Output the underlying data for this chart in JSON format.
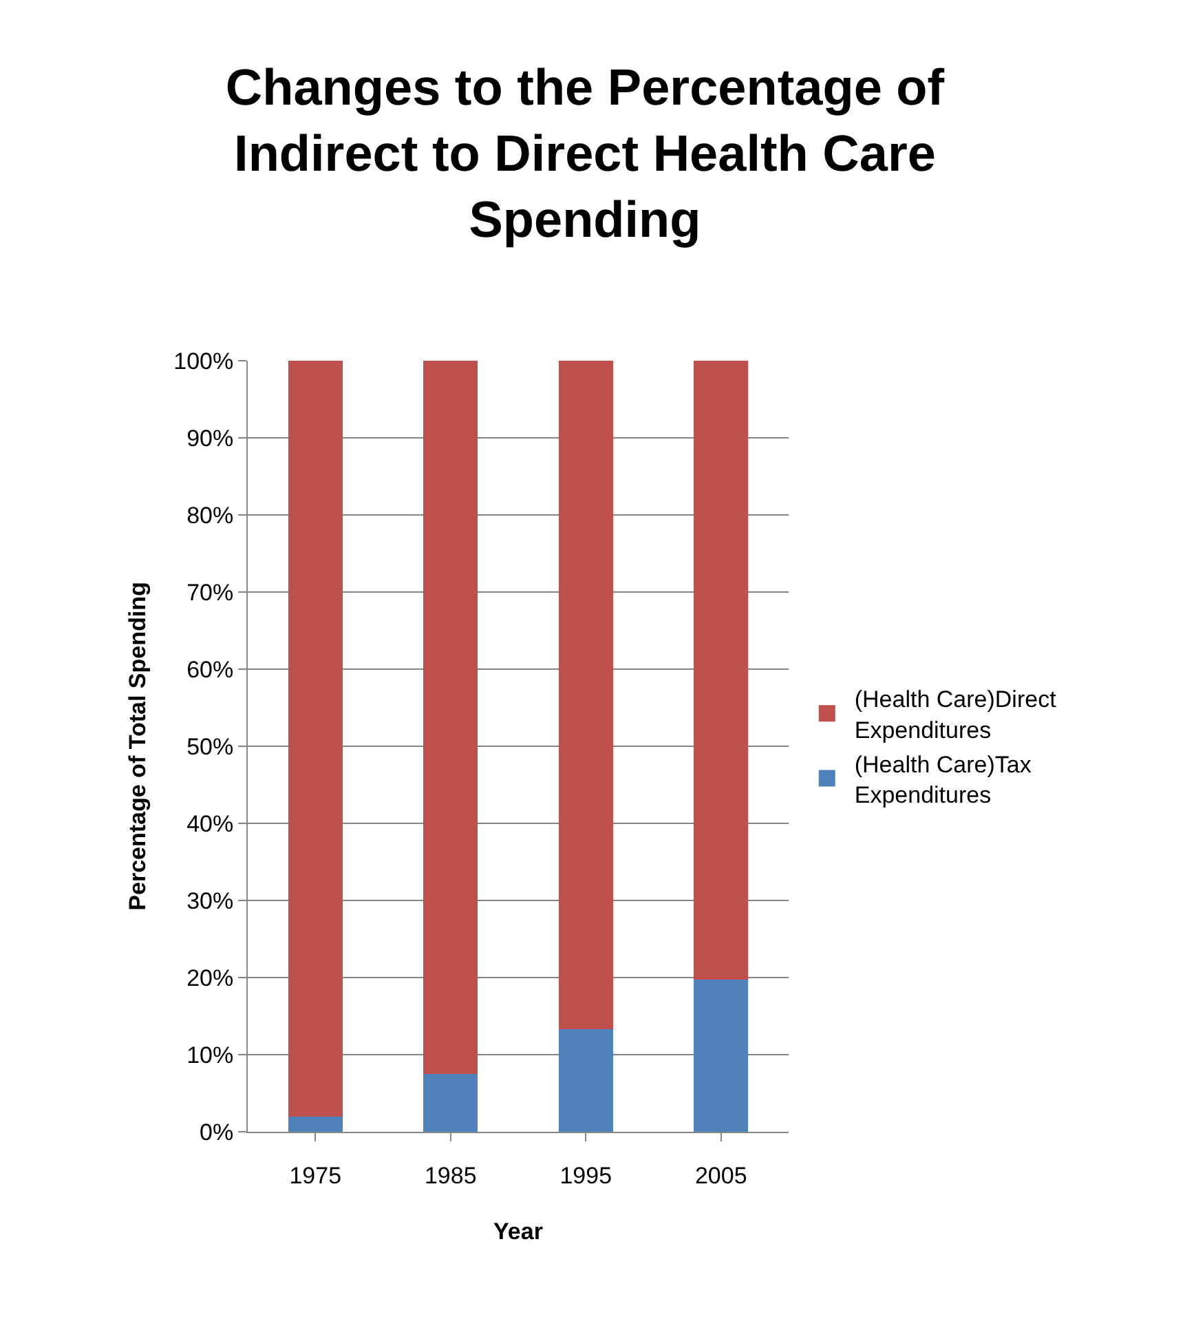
{
  "chart_data": {
    "type": "bar",
    "stacked": true,
    "title": "Changes to the Percentage of Indirect to Direct Health Care Spending",
    "xlabel": "Year",
    "ylabel": "Percentage of Total Spending",
    "categories": [
      "1975",
      "1985",
      "1995",
      "2005"
    ],
    "series": [
      {
        "name": "(Health Care)Tax Expenditures",
        "color": "#4f81bd",
        "values": [
          2,
          7.5,
          13.3,
          19.7
        ]
      },
      {
        "name": "(Health Care)Direct Expenditures",
        "color": "#c0504d",
        "values": [
          98,
          92.5,
          86.7,
          80.3
        ]
      }
    ],
    "ylim": [
      0,
      100
    ],
    "yticks": [
      {
        "value": 0,
        "label": "0%"
      },
      {
        "value": 10,
        "label": "10%"
      },
      {
        "value": 20,
        "label": "20%"
      },
      {
        "value": 30,
        "label": "30%"
      },
      {
        "value": 40,
        "label": "40%"
      },
      {
        "value": 50,
        "label": "50%"
      },
      {
        "value": 60,
        "label": "60%"
      },
      {
        "value": 70,
        "label": "70%"
      },
      {
        "value": 80,
        "label": "80%"
      },
      {
        "value": 90,
        "label": "90%"
      },
      {
        "value": 100,
        "label": "100%"
      }
    ],
    "grid": "y",
    "legend": "right"
  }
}
